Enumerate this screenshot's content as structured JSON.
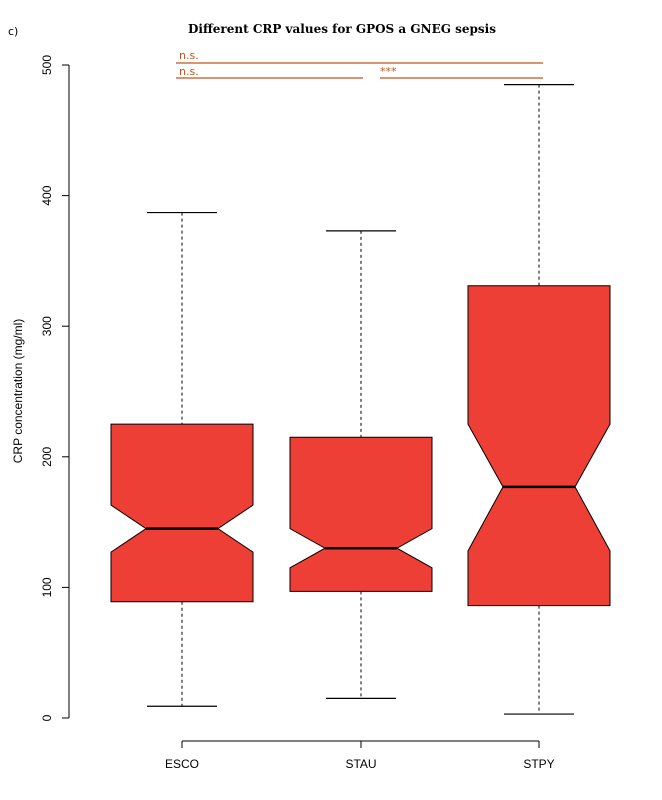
{
  "chart_data": {
    "type": "box",
    "panel_label": "c)",
    "title": "Different CRP values for GPOS a GNEG sepsis",
    "xlabel": "",
    "ylabel": "CRP concentration (mg/ml)",
    "ylim": [
      0,
      500
    ],
    "yticks": [
      0,
      100,
      200,
      300,
      400,
      500
    ],
    "categories": [
      "ESCO",
      "STAU",
      "STPY"
    ],
    "notched": true,
    "box_color": "#ee3f37",
    "stats": [
      {
        "name": "ESCO",
        "min": 9,
        "q1": 89,
        "notch_low": 127,
        "median": 145,
        "notch_high": 163,
        "q3": 225,
        "max": 387
      },
      {
        "name": "STAU",
        "min": 15,
        "q1": 97,
        "notch_low": 115,
        "median": 130,
        "notch_high": 145,
        "q3": 215,
        "max": 373
      },
      {
        "name": "STPY",
        "min": 3,
        "q1": 86,
        "notch_low": 128,
        "median": 177,
        "notch_high": 225,
        "q3": 331,
        "max": 485
      }
    ],
    "significance": [
      {
        "from": "ESCO",
        "to": "STPY",
        "label": "n.s.",
        "color": "#c0561f"
      },
      {
        "from": "ESCO",
        "to": "STAU",
        "label": "n.s.",
        "color": "#c0561f"
      },
      {
        "from": "STAU",
        "to": "STPY",
        "label": "***",
        "color": "#c0561f"
      }
    ],
    "grid": false,
    "legend": "none"
  }
}
